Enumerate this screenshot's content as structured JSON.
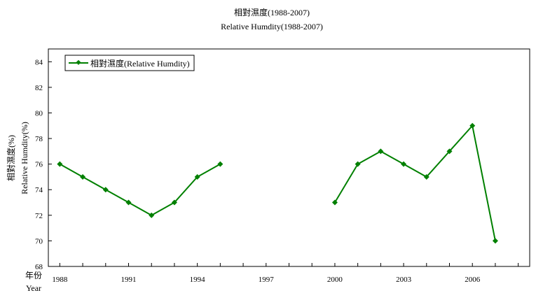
{
  "chart_data": {
    "type": "line",
    "title": "相對濕度(1988-2007)",
    "subtitle": "Relative Humdity(1988-2007)",
    "ylabel_zh": "相對濕度(%)",
    "ylabel_en": "Relative Humdity(%)",
    "xlabel_zh": "年份",
    "xlabel_en": "Year",
    "ylim": [
      68,
      85
    ],
    "yticks": [
      68,
      70,
      72,
      74,
      76,
      78,
      80,
      82,
      84
    ],
    "xlim": [
      1987.5,
      2008.5
    ],
    "xtick_labels": [
      "1988",
      "1991",
      "1994",
      "1997",
      "2000",
      "2003",
      "2006"
    ],
    "grid": false,
    "legend_position": "top-left",
    "series": [
      {
        "name": "相對濕度(Relative Humdity)",
        "color": "#008000",
        "x": [
          1988,
          1989,
          1990,
          1991,
          1992,
          1993,
          1994,
          1995,
          1996,
          1997,
          1998,
          1999,
          2000,
          2001,
          2002,
          2003,
          2004,
          2005,
          2006,
          2007
        ],
        "values": [
          76,
          75,
          74,
          73,
          72,
          73,
          75,
          76,
          null,
          null,
          null,
          null,
          73,
          76,
          77,
          76,
          75,
          77,
          79,
          70
        ]
      }
    ]
  }
}
